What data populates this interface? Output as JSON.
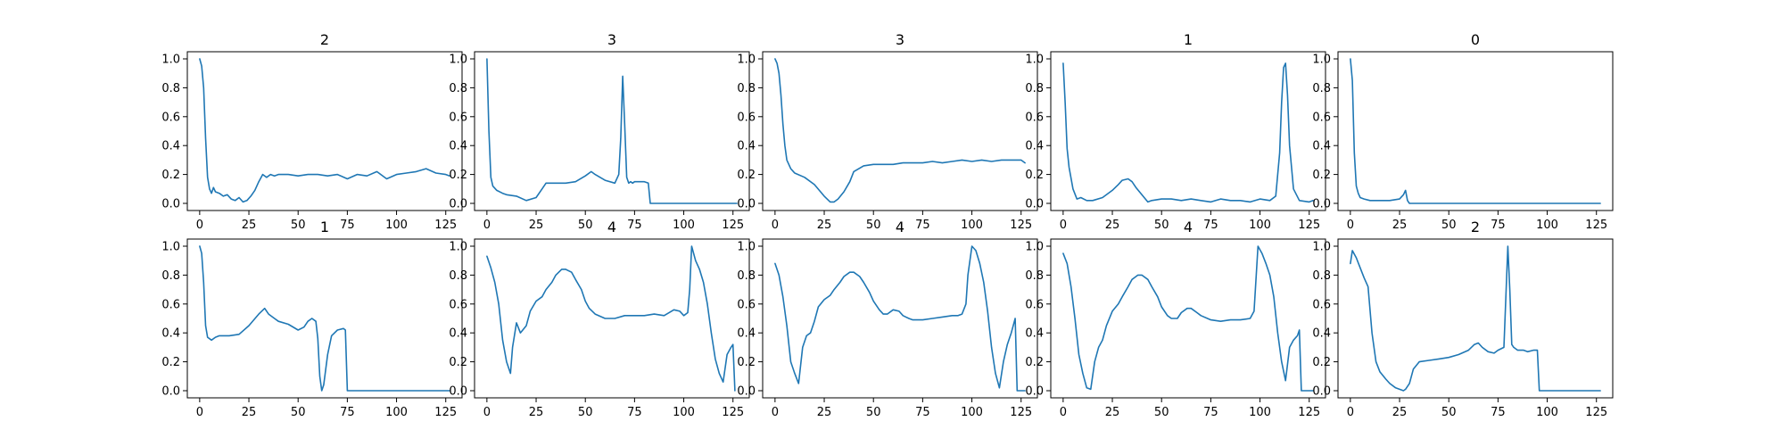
{
  "chart_data": [
    {
      "type": "line",
      "title": "2",
      "xlim": [
        0,
        127
      ],
      "ylim": [
        0,
        1
      ],
      "xticks": [
        0,
        25,
        50,
        75,
        100,
        125
      ],
      "yticks": [
        0.0,
        0.2,
        0.4,
        0.6,
        0.8,
        1.0
      ],
      "tick_labels_x": [
        "0",
        "25",
        "50",
        "75",
        "100",
        "125"
      ],
      "tick_labels_y": [
        "0.0",
        "0.2",
        "0.4",
        "0.6",
        "0.8",
        "1.0"
      ],
      "x": [
        0,
        1,
        2,
        3,
        4,
        5,
        6,
        7,
        8,
        10,
        12,
        14,
        16,
        18,
        20,
        22,
        24,
        26,
        28,
        30,
        32,
        34,
        36,
        38,
        40,
        45,
        50,
        55,
        60,
        65,
        70,
        75,
        80,
        85,
        90,
        95,
        100,
        105,
        110,
        115,
        120,
        125,
        127
      ],
      "y": [
        1.0,
        0.95,
        0.8,
        0.45,
        0.18,
        0.1,
        0.07,
        0.11,
        0.08,
        0.07,
        0.05,
        0.06,
        0.03,
        0.02,
        0.04,
        0.01,
        0.02,
        0.05,
        0.09,
        0.15,
        0.2,
        0.18,
        0.2,
        0.19,
        0.2,
        0.2,
        0.19,
        0.2,
        0.2,
        0.19,
        0.2,
        0.17,
        0.2,
        0.19,
        0.22,
        0.17,
        0.2,
        0.21,
        0.22,
        0.24,
        0.21,
        0.2,
        0.19
      ]
    },
    {
      "type": "line",
      "title": "3",
      "xlim": [
        0,
        127
      ],
      "ylim": [
        0,
        1
      ],
      "xticks": [
        0,
        25,
        50,
        75,
        100,
        125
      ],
      "yticks": [
        0.0,
        0.2,
        0.4,
        0.6,
        0.8,
        1.0
      ],
      "tick_labels_x": [
        "0",
        "25",
        "50",
        "75",
        "100",
        "125"
      ],
      "tick_labels_y": [
        "0.0",
        "0.2",
        "0.4",
        "0.6",
        "0.8",
        "1.0"
      ],
      "x": [
        0,
        1,
        2,
        3,
        5,
        8,
        10,
        15,
        20,
        25,
        28,
        30,
        35,
        40,
        45,
        50,
        53,
        55,
        60,
        65,
        67,
        68,
        69,
        70,
        71,
        72,
        73,
        74,
        75,
        80,
        82,
        83,
        85,
        90,
        100,
        110,
        120,
        127
      ],
      "y": [
        1.0,
        0.5,
        0.18,
        0.12,
        0.09,
        0.07,
        0.06,
        0.05,
        0.02,
        0.04,
        0.1,
        0.14,
        0.14,
        0.14,
        0.15,
        0.19,
        0.22,
        0.2,
        0.16,
        0.14,
        0.2,
        0.45,
        0.88,
        0.55,
        0.18,
        0.14,
        0.15,
        0.14,
        0.15,
        0.15,
        0.14,
        0.0,
        0.0,
        0.0,
        0.0,
        0.0,
        0.0,
        0.0
      ]
    },
    {
      "type": "line",
      "title": "3",
      "xlim": [
        0,
        127
      ],
      "ylim": [
        0,
        1
      ],
      "xticks": [
        0,
        25,
        50,
        75,
        100,
        125
      ],
      "yticks": [
        0.0,
        0.2,
        0.4,
        0.6,
        0.8,
        1.0
      ],
      "tick_labels_x": [
        "0",
        "25",
        "50",
        "75",
        "100",
        "125"
      ],
      "tick_labels_y": [
        "0.0",
        "0.2",
        "0.4",
        "0.6",
        "0.8",
        "1.0"
      ],
      "x": [
        0,
        1,
        2,
        3,
        4,
        5,
        6,
        8,
        10,
        15,
        20,
        25,
        28,
        30,
        32,
        35,
        38,
        40,
        45,
        50,
        55,
        60,
        65,
        70,
        75,
        80,
        85,
        90,
        95,
        100,
        105,
        110,
        115,
        120,
        125,
        127
      ],
      "y": [
        1.0,
        0.97,
        0.9,
        0.75,
        0.55,
        0.4,
        0.3,
        0.24,
        0.21,
        0.18,
        0.13,
        0.05,
        0.01,
        0.01,
        0.03,
        0.08,
        0.15,
        0.22,
        0.26,
        0.27,
        0.27,
        0.27,
        0.28,
        0.28,
        0.28,
        0.29,
        0.28,
        0.29,
        0.3,
        0.29,
        0.3,
        0.29,
        0.3,
        0.3,
        0.3,
        0.28
      ]
    },
    {
      "type": "line",
      "title": "1",
      "xlim": [
        0,
        127
      ],
      "ylim": [
        0,
        1
      ],
      "xticks": [
        0,
        25,
        50,
        75,
        100,
        125
      ],
      "yticks": [
        0.0,
        0.2,
        0.4,
        0.6,
        0.8,
        1.0
      ],
      "tick_labels_x": [
        "0",
        "25",
        "50",
        "75",
        "100",
        "125"
      ],
      "tick_labels_y": [
        "0.0",
        "0.2",
        "0.4",
        "0.6",
        "0.8",
        "1.0"
      ],
      "x": [
        0,
        1,
        2,
        3,
        5,
        7,
        9,
        12,
        15,
        20,
        25,
        28,
        30,
        33,
        35,
        37,
        40,
        43,
        45,
        50,
        55,
        60,
        65,
        70,
        75,
        80,
        85,
        90,
        95,
        100,
        105,
        108,
        110,
        111,
        112,
        113,
        114,
        115,
        117,
        120,
        125,
        127
      ],
      "y": [
        0.97,
        0.7,
        0.38,
        0.25,
        0.1,
        0.03,
        0.04,
        0.02,
        0.02,
        0.04,
        0.09,
        0.13,
        0.16,
        0.17,
        0.15,
        0.11,
        0.06,
        0.01,
        0.02,
        0.03,
        0.03,
        0.02,
        0.03,
        0.02,
        0.01,
        0.03,
        0.02,
        0.02,
        0.01,
        0.03,
        0.02,
        0.05,
        0.35,
        0.7,
        0.94,
        0.97,
        0.75,
        0.4,
        0.1,
        0.02,
        0.01,
        0.02
      ]
    },
    {
      "type": "line",
      "title": "0",
      "xlim": [
        0,
        127
      ],
      "ylim": [
        0,
        1
      ],
      "xticks": [
        0,
        25,
        50,
        75,
        100,
        125
      ],
      "yticks": [
        0.0,
        0.2,
        0.4,
        0.6,
        0.8,
        1.0
      ],
      "tick_labels_x": [
        "0",
        "25",
        "50",
        "75",
        "100",
        "125"
      ],
      "tick_labels_y": [
        "0.0",
        "0.2",
        "0.4",
        "0.6",
        "0.8",
        "1.0"
      ],
      "x": [
        0,
        1,
        2,
        3,
        4,
        5,
        7,
        10,
        15,
        20,
        25,
        27,
        28,
        29,
        30,
        40,
        50,
        60,
        70,
        80,
        90,
        100,
        110,
        120,
        127
      ],
      "y": [
        1.0,
        0.85,
        0.35,
        0.12,
        0.07,
        0.04,
        0.03,
        0.02,
        0.02,
        0.02,
        0.03,
        0.06,
        0.09,
        0.02,
        0.0,
        0.0,
        0.0,
        0.0,
        0.0,
        0.0,
        0.0,
        0.0,
        0.0,
        0.0,
        0.0
      ]
    },
    {
      "type": "line",
      "title": "1",
      "xlim": [
        0,
        127
      ],
      "ylim": [
        0,
        1
      ],
      "xticks": [
        0,
        25,
        50,
        75,
        100,
        125
      ],
      "yticks": [
        0.0,
        0.2,
        0.4,
        0.6,
        0.8,
        1.0
      ],
      "tick_labels_x": [
        "0",
        "25",
        "50",
        "75",
        "100",
        "125"
      ],
      "tick_labels_y": [
        "0.0",
        "0.2",
        "0.4",
        "0.6",
        "0.8",
        "1.0"
      ],
      "x": [
        0,
        1,
        2,
        3,
        4,
        5,
        6,
        8,
        10,
        15,
        20,
        25,
        30,
        33,
        35,
        38,
        40,
        45,
        50,
        53,
        55,
        57,
        59,
        60,
        61,
        62,
        63,
        65,
        67,
        70,
        73,
        74,
        75,
        76,
        80,
        90,
        100,
        110,
        120,
        125,
        127
      ],
      "y": [
        1.0,
        0.95,
        0.75,
        0.45,
        0.37,
        0.36,
        0.35,
        0.37,
        0.38,
        0.38,
        0.39,
        0.45,
        0.53,
        0.57,
        0.53,
        0.5,
        0.48,
        0.46,
        0.42,
        0.44,
        0.48,
        0.5,
        0.48,
        0.36,
        0.1,
        0.0,
        0.04,
        0.25,
        0.38,
        0.42,
        0.43,
        0.42,
        0.0,
        0.0,
        0.0,
        0.0,
        0.0,
        0.0,
        0.0,
        0.0,
        0.0
      ]
    },
    {
      "type": "line",
      "title": "4",
      "xlim": [
        0,
        127
      ],
      "ylim": [
        0,
        1
      ],
      "xticks": [
        0,
        25,
        50,
        75,
        100,
        125
      ],
      "yticks": [
        0.0,
        0.2,
        0.4,
        0.6,
        0.8,
        1.0
      ],
      "tick_labels_x": [
        "0",
        "25",
        "50",
        "75",
        "100",
        "125"
      ],
      "tick_labels_y": [
        "0.0",
        "0.2",
        "0.4",
        "0.6",
        "0.8",
        "1.0"
      ],
      "x": [
        0,
        2,
        4,
        6,
        8,
        10,
        12,
        13,
        15,
        17,
        20,
        22,
        25,
        28,
        30,
        33,
        35,
        38,
        40,
        43,
        45,
        48,
        50,
        52,
        55,
        60,
        65,
        70,
        75,
        80,
        85,
        90,
        95,
        98,
        100,
        102,
        103,
        104,
        106,
        108,
        110,
        112,
        114,
        116,
        118,
        120,
        122,
        124,
        125,
        126
      ],
      "y": [
        0.93,
        0.85,
        0.75,
        0.6,
        0.35,
        0.2,
        0.12,
        0.3,
        0.47,
        0.4,
        0.45,
        0.55,
        0.62,
        0.65,
        0.7,
        0.75,
        0.8,
        0.84,
        0.84,
        0.82,
        0.77,
        0.7,
        0.62,
        0.57,
        0.53,
        0.5,
        0.5,
        0.52,
        0.52,
        0.52,
        0.53,
        0.52,
        0.56,
        0.55,
        0.52,
        0.54,
        0.7,
        1.0,
        0.9,
        0.84,
        0.75,
        0.6,
        0.4,
        0.22,
        0.12,
        0.06,
        0.25,
        0.3,
        0.32,
        0.0
      ]
    },
    {
      "type": "line",
      "title": "4",
      "xlim": [
        0,
        127
      ],
      "ylim": [
        0,
        1
      ],
      "xticks": [
        0,
        25,
        50,
        75,
        100,
        125
      ],
      "yticks": [
        0.0,
        0.2,
        0.4,
        0.6,
        0.8,
        1.0
      ],
      "tick_labels_x": [
        "0",
        "25",
        "50",
        "75",
        "100",
        "125"
      ],
      "tick_labels_y": [
        "0.0",
        "0.2",
        "0.4",
        "0.6",
        "0.8",
        "1.0"
      ],
      "x": [
        0,
        2,
        4,
        6,
        8,
        10,
        12,
        14,
        16,
        18,
        20,
        22,
        25,
        28,
        30,
        33,
        35,
        38,
        40,
        43,
        45,
        48,
        50,
        53,
        55,
        57,
        60,
        63,
        65,
        68,
        70,
        75,
        80,
        85,
        90,
        93,
        95,
        97,
        98,
        100,
        102,
        104,
        106,
        108,
        110,
        112,
        114,
        116,
        118,
        120,
        122,
        123,
        125,
        127
      ],
      "y": [
        0.88,
        0.8,
        0.65,
        0.45,
        0.2,
        0.12,
        0.05,
        0.3,
        0.38,
        0.4,
        0.48,
        0.58,
        0.63,
        0.66,
        0.7,
        0.75,
        0.79,
        0.82,
        0.82,
        0.79,
        0.75,
        0.68,
        0.62,
        0.56,
        0.53,
        0.53,
        0.56,
        0.55,
        0.52,
        0.5,
        0.49,
        0.49,
        0.5,
        0.51,
        0.52,
        0.52,
        0.53,
        0.6,
        0.8,
        1.0,
        0.97,
        0.88,
        0.75,
        0.55,
        0.3,
        0.12,
        0.02,
        0.2,
        0.32,
        0.4,
        0.5,
        0.0,
        0.0,
        0.0
      ]
    },
    {
      "type": "line",
      "title": "4",
      "xlim": [
        0,
        127
      ],
      "ylim": [
        0,
        1
      ],
      "xticks": [
        0,
        25,
        50,
        75,
        100,
        125
      ],
      "yticks": [
        0.0,
        0.2,
        0.4,
        0.6,
        0.8,
        1.0
      ],
      "tick_labels_x": [
        "0",
        "25",
        "50",
        "75",
        "100",
        "125"
      ],
      "tick_labels_y": [
        "0.0",
        "0.2",
        "0.4",
        "0.6",
        "0.8",
        "1.0"
      ],
      "x": [
        0,
        2,
        4,
        6,
        8,
        10,
        12,
        14,
        16,
        18,
        20,
        22,
        25,
        28,
        30,
        33,
        35,
        38,
        40,
        43,
        45,
        48,
        50,
        53,
        55,
        58,
        60,
        63,
        65,
        68,
        70,
        75,
        80,
        85,
        90,
        95,
        97,
        99,
        101,
        103,
        105,
        107,
        109,
        111,
        113,
        115,
        117,
        119,
        120,
        121,
        123,
        125,
        127
      ],
      "y": [
        0.95,
        0.88,
        0.72,
        0.5,
        0.25,
        0.12,
        0.02,
        0.01,
        0.2,
        0.3,
        0.35,
        0.45,
        0.55,
        0.6,
        0.65,
        0.72,
        0.77,
        0.8,
        0.8,
        0.77,
        0.72,
        0.65,
        0.58,
        0.52,
        0.5,
        0.5,
        0.54,
        0.57,
        0.57,
        0.54,
        0.52,
        0.49,
        0.48,
        0.49,
        0.49,
        0.5,
        0.55,
        1.0,
        0.95,
        0.88,
        0.8,
        0.65,
        0.4,
        0.2,
        0.07,
        0.3,
        0.35,
        0.38,
        0.42,
        0.0,
        0.0,
        0.0,
        0.0
      ]
    },
    {
      "type": "line",
      "title": "2",
      "xlim": [
        0,
        127
      ],
      "ylim": [
        0,
        1
      ],
      "xticks": [
        0,
        25,
        50,
        75,
        100,
        125
      ],
      "yticks": [
        0.0,
        0.2,
        0.4,
        0.6,
        0.8,
        1.0
      ],
      "tick_labels_x": [
        "0",
        "25",
        "50",
        "75",
        "100",
        "125"
      ],
      "tick_labels_y": [
        "0.0",
        "0.2",
        "0.4",
        "0.6",
        "0.8",
        "1.0"
      ],
      "x": [
        0,
        1,
        3,
        5,
        7,
        9,
        11,
        13,
        15,
        18,
        20,
        23,
        25,
        27,
        28,
        30,
        32,
        35,
        40,
        45,
        50,
        55,
        60,
        63,
        65,
        67,
        70,
        73,
        75,
        78,
        79,
        80,
        81,
        82,
        83,
        85,
        88,
        90,
        93,
        95,
        96,
        100,
        110,
        120,
        127
      ],
      "y": [
        0.88,
        0.97,
        0.92,
        0.85,
        0.78,
        0.72,
        0.4,
        0.2,
        0.13,
        0.08,
        0.05,
        0.02,
        0.01,
        0.0,
        0.01,
        0.05,
        0.15,
        0.2,
        0.21,
        0.22,
        0.23,
        0.25,
        0.28,
        0.32,
        0.33,
        0.3,
        0.27,
        0.26,
        0.28,
        0.3,
        0.65,
        1.0,
        0.7,
        0.32,
        0.3,
        0.28,
        0.28,
        0.27,
        0.28,
        0.28,
        0.0,
        0.0,
        0.0,
        0.0,
        0.0
      ]
    }
  ],
  "colors": {
    "line": "#1f77b4",
    "axes": "#000000",
    "background": "#ffffff"
  }
}
